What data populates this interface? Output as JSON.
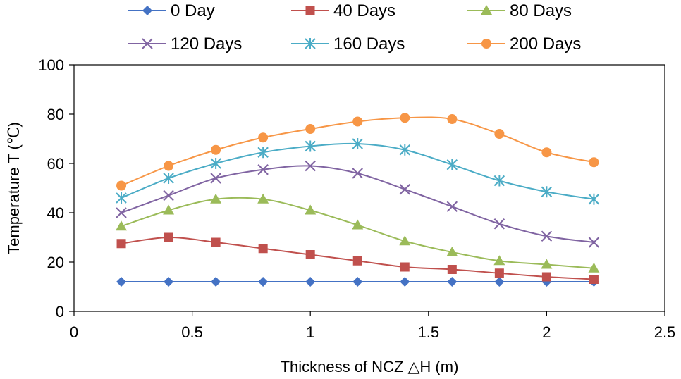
{
  "chart_data": {
    "type": "line",
    "xlabel": "Thickness of NCZ  △H (m)",
    "ylabel": "Temperature  T (℃)",
    "xlim": [
      0,
      2.5
    ],
    "ylim": [
      0,
      100
    ],
    "xticks": [
      0,
      0.5,
      1,
      1.5,
      2,
      2.5
    ],
    "xtick_labels": [
      "0",
      "0.5",
      "1",
      "1.5",
      "2",
      "2.5"
    ],
    "yticks": [
      0,
      20,
      40,
      60,
      80,
      100
    ],
    "ytick_labels": [
      "0",
      "20",
      "40",
      "60",
      "80",
      "100"
    ],
    "legend_position": "top",
    "x": [
      0.2,
      0.4,
      0.6,
      0.8,
      1.0,
      1.2,
      1.4,
      1.6,
      1.8,
      2.0,
      2.2
    ],
    "series": [
      {
        "name": "0 Day",
        "color": "#4472c4",
        "marker": "diamond",
        "values": [
          12,
          12,
          12,
          12,
          12,
          12,
          12,
          12,
          12,
          12,
          12
        ]
      },
      {
        "name": "40 Days",
        "color": "#c0504d",
        "marker": "square",
        "values": [
          27.5,
          30,
          28,
          25.5,
          23,
          20.5,
          18,
          17,
          15.5,
          14,
          13
        ]
      },
      {
        "name": "80 Days",
        "color": "#9bbb59",
        "marker": "triangle",
        "values": [
          34.5,
          41,
          45.5,
          45.5,
          41,
          35,
          28.5,
          24,
          20.5,
          19,
          17.5
        ]
      },
      {
        "name": "120 Days",
        "color": "#8064a2",
        "marker": "x",
        "values": [
          40,
          47,
          54,
          57.5,
          59,
          56,
          49.5,
          42.5,
          35.5,
          30.5,
          28
        ]
      },
      {
        "name": "160 Days",
        "color": "#4bacc6",
        "marker": "star",
        "values": [
          46,
          54,
          60,
          64.5,
          67,
          68,
          65.5,
          59.5,
          53,
          48.5,
          45.5
        ]
      },
      {
        "name": "200 Days",
        "color": "#f79646",
        "marker": "circle",
        "values": [
          51,
          59,
          65.5,
          70.5,
          74,
          77,
          78.5,
          78,
          72,
          64.5,
          60.5
        ]
      }
    ]
  }
}
